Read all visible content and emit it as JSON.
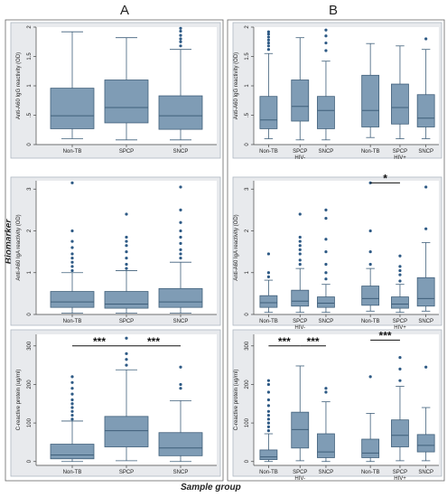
{
  "headers": {
    "a": "A",
    "b": "B"
  },
  "y_axis_label": "Biomarker",
  "x_axis_label": "Sample group",
  "colors": {
    "box": "#7f9cb5",
    "stroke": "#3f5f7a",
    "outlier": "#2e5a85",
    "frame": "#aeb7c1",
    "bg": "#e8eaed",
    "plot": "#ffffff"
  },
  "chart_data": [
    {
      "type": "box",
      "panel": "A1",
      "ylabel": "Anti-A60 IgG reactivity (OD)",
      "ylim": [
        0,
        2
      ],
      "yticks": [
        0,
        0.5,
        1,
        1.5,
        2
      ],
      "ytick_labels": [
        "0",
        ".5",
        "1",
        "1.5",
        "2"
      ],
      "categories": [
        "Non-TB",
        "SPCP",
        "SNCP"
      ],
      "boxes": [
        {
          "min": 0.1,
          "q1": 0.27,
          "median": 0.49,
          "q3": 0.96,
          "max": 1.92,
          "outliers": []
        },
        {
          "min": 0.08,
          "q1": 0.37,
          "median": 0.63,
          "q3": 1.1,
          "max": 1.82,
          "outliers": []
        },
        {
          "min": 0.08,
          "q1": 0.26,
          "median": 0.49,
          "q3": 0.83,
          "max": 1.62,
          "outliers": [
            1.68,
            1.75,
            1.8,
            1.86,
            1.93,
            1.98
          ]
        }
      ]
    },
    {
      "type": "box",
      "panel": "B1",
      "ylabel": "Anti-A60 IgG reactivity (OD)",
      "ylim": [
        0,
        2
      ],
      "yticks": [
        0,
        0.5,
        1,
        1.5,
        2
      ],
      "ytick_labels": [
        "0",
        ".5",
        "1",
        "1.5",
        "2"
      ],
      "categories": [
        "Non-TB",
        "SPCP",
        "SNCP",
        "Non-TB",
        "SPCP",
        "SNCP"
      ],
      "group_labels": [
        "HIV-",
        "HIV+"
      ],
      "boxes": [
        {
          "min": 0.1,
          "q1": 0.27,
          "median": 0.42,
          "q3": 0.82,
          "max": 1.55,
          "outliers": [
            1.62,
            1.68,
            1.73,
            1.78,
            1.83,
            1.88,
            1.92
          ]
        },
        {
          "min": 0.08,
          "q1": 0.4,
          "median": 0.65,
          "q3": 1.1,
          "max": 1.82,
          "outliers": []
        },
        {
          "min": 0.08,
          "q1": 0.27,
          "median": 0.58,
          "q3": 0.82,
          "max": 1.42,
          "outliers": [
            1.6,
            1.73,
            1.85,
            1.95
          ]
        },
        {
          "min": 0.12,
          "q1": 0.3,
          "median": 0.58,
          "q3": 1.18,
          "max": 1.72,
          "outliers": []
        },
        {
          "min": 0.1,
          "q1": 0.35,
          "median": 0.63,
          "q3": 1.03,
          "max": 1.68,
          "outliers": []
        },
        {
          "min": 0.1,
          "q1": 0.3,
          "median": 0.45,
          "q3": 0.85,
          "max": 1.62,
          "outliers": [
            1.8
          ]
        }
      ]
    },
    {
      "type": "box",
      "panel": "A2",
      "ylabel": "Anti-A60 IgA reactivity (OD)",
      "ylim": [
        0,
        3.2
      ],
      "yticks": [
        0,
        1,
        2,
        3
      ],
      "ytick_labels": [
        "0",
        "1",
        "2",
        "3"
      ],
      "categories": [
        "Non-TB",
        "SPCP",
        "SNCP"
      ],
      "boxes": [
        {
          "min": 0.03,
          "q1": 0.17,
          "median": 0.3,
          "q3": 0.55,
          "max": 1.0,
          "outliers": [
            1.05,
            1.15,
            1.25,
            1.35,
            1.45,
            1.6,
            1.75,
            2.0,
            3.15
          ]
        },
        {
          "min": 0.03,
          "q1": 0.15,
          "median": 0.25,
          "q3": 0.55,
          "max": 1.05,
          "outliers": [
            1.1,
            1.2,
            1.35,
            1.5,
            1.65,
            1.75,
            1.85,
            2.4
          ]
        },
        {
          "min": 0.03,
          "q1": 0.17,
          "median": 0.3,
          "q3": 0.62,
          "max": 1.25,
          "outliers": [
            1.35,
            1.45,
            1.55,
            1.7,
            1.85,
            2.0,
            2.2,
            2.5,
            3.05
          ]
        }
      ]
    },
    {
      "type": "box",
      "panel": "B2",
      "ylabel": "Anti-A60 IgA reactivity (OD)",
      "ylim": [
        0,
        3.2
      ],
      "yticks": [
        0,
        1,
        2,
        3
      ],
      "ytick_labels": [
        "0",
        "1",
        "2",
        "3"
      ],
      "categories": [
        "Non-TB",
        "SPCP",
        "SNCP",
        "Non-TB",
        "SPCP",
        "SNCP"
      ],
      "group_labels": [
        "HIV-",
        "HIV+"
      ],
      "significance": [
        {
          "from": 3,
          "to": 4,
          "label": "*",
          "y": 3.15
        }
      ],
      "boxes": [
        {
          "min": 0.05,
          "q1": 0.17,
          "median": 0.28,
          "q3": 0.45,
          "max": 0.82,
          "outliers": [
            0.9,
            1.0,
            1.45
          ]
        },
        {
          "min": 0.05,
          "q1": 0.2,
          "median": 0.32,
          "q3": 0.58,
          "max": 1.1,
          "outliers": [
            1.2,
            1.3,
            1.45,
            1.55,
            1.65,
            1.75,
            1.85,
            2.4
          ]
        },
        {
          "min": 0.05,
          "q1": 0.17,
          "median": 0.27,
          "q3": 0.42,
          "max": 0.72,
          "outliers": [
            0.85,
            1.0,
            1.2,
            1.5,
            1.8,
            2.3,
            2.5
          ]
        },
        {
          "min": 0.08,
          "q1": 0.22,
          "median": 0.38,
          "q3": 0.68,
          "max": 1.1,
          "outliers": [
            1.2,
            1.5,
            2.0,
            3.15
          ]
        },
        {
          "min": 0.05,
          "q1": 0.15,
          "median": 0.25,
          "q3": 0.42,
          "max": 0.72,
          "outliers": [
            0.8,
            0.95,
            1.05,
            1.15,
            1.4
          ]
        },
        {
          "min": 0.08,
          "q1": 0.2,
          "median": 0.38,
          "q3": 0.88,
          "max": 1.72,
          "outliers": [
            2.05,
            3.05
          ]
        }
      ]
    },
    {
      "type": "box",
      "panel": "A3",
      "ylabel": "C-reactive protein (ug/ml)",
      "ylim": [
        -10,
        330
      ],
      "yticks": [
        0,
        100,
        200,
        300
      ],
      "ytick_labels": [
        "0",
        "100",
        "200",
        "300"
      ],
      "categories": [
        "Non-TB",
        "SPCP",
        "SNCP"
      ],
      "significance": [
        {
          "from": 0,
          "to": 1,
          "label": "***",
          "y": 300
        },
        {
          "from": 1,
          "to": 2,
          "label": "***",
          "y": 300
        }
      ],
      "boxes": [
        {
          "min": 0,
          "q1": 7,
          "median": 17,
          "q3": 45,
          "max": 105,
          "outliers": [
            110,
            120,
            130,
            140,
            150,
            160,
            175,
            190,
            205,
            220
          ]
        },
        {
          "min": 2,
          "q1": 38,
          "median": 80,
          "q3": 117,
          "max": 238,
          "outliers": [
            250,
            265,
            280,
            320
          ]
        },
        {
          "min": 0,
          "q1": 15,
          "median": 35,
          "q3": 75,
          "max": 158,
          "outliers": [
            190,
            200,
            245
          ]
        }
      ]
    },
    {
      "type": "box",
      "panel": "B3",
      "ylabel": "C-reactive protein (ug/ml)",
      "ylim": [
        -10,
        330
      ],
      "yticks": [
        0,
        100,
        200,
        300
      ],
      "ytick_labels": [
        "0",
        "100",
        "200",
        "300"
      ],
      "categories": [
        "Non-TB",
        "SPCP",
        "SNCP",
        "Non-TB",
        "SPCP",
        "SNCP"
      ],
      "group_labels": [
        "HIV-",
        "HIV+"
      ],
      "significance": [
        {
          "from": 0,
          "to": 1,
          "label": "***",
          "y": 300
        },
        {
          "from": 1,
          "to": 2,
          "label": "***",
          "y": 300
        },
        {
          "from": 3,
          "to": 4,
          "label": "***",
          "y": 315
        }
      ],
      "boxes": [
        {
          "min": 0,
          "q1": 5,
          "median": 12,
          "q3": 30,
          "max": 72,
          "outliers": [
            80,
            90,
            100,
            110,
            120,
            130,
            145,
            160,
            180,
            200,
            210
          ]
        },
        {
          "min": 2,
          "q1": 35,
          "median": 83,
          "q3": 128,
          "max": 248,
          "outliers": []
        },
        {
          "min": 0,
          "q1": 10,
          "median": 25,
          "q3": 72,
          "max": 155,
          "outliers": [
            180,
            190
          ]
        },
        {
          "min": 0,
          "q1": 10,
          "median": 22,
          "q3": 58,
          "max": 125,
          "outliers": [
            220
          ]
        },
        {
          "min": 2,
          "q1": 38,
          "median": 68,
          "q3": 108,
          "max": 195,
          "outliers": [
            210,
            240,
            270
          ]
        },
        {
          "min": 2,
          "q1": 25,
          "median": 42,
          "q3": 70,
          "max": 140,
          "outliers": [
            245
          ]
        }
      ]
    }
  ]
}
